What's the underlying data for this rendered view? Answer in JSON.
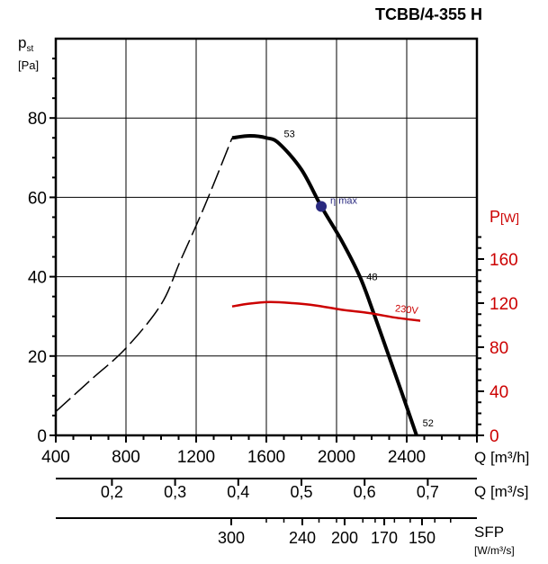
{
  "chart_data": {
    "type": "line",
    "title": "TCBB/4-355 H",
    "ylabel": {
      "symbol": "p",
      "subscript": "st",
      "unit": "[Pa]"
    },
    "ylim": [
      0,
      100
    ],
    "yticks": [
      0,
      20,
      40,
      60,
      80
    ],
    "xlabel": "Q [m³/h]",
    "xlim": [
      400,
      2800
    ],
    "xticks": [
      400,
      800,
      1200,
      1600,
      2000,
      2400
    ],
    "grid": true,
    "y2label": {
      "symbol": "P",
      "unit": "[W]"
    },
    "y2lim": [
      0,
      360
    ],
    "y2ticks": [
      0,
      40,
      80,
      120,
      160
    ],
    "axis_q_m3s": {
      "label": "Q [m³/s]",
      "ticks": [
        "0,2",
        "0,3",
        "0,4",
        "0,5",
        "0,6",
        "0,7"
      ],
      "values": [
        0.2,
        0.3,
        0.4,
        0.5,
        0.6,
        0.7
      ]
    },
    "axis_sfp": {
      "label": "SFP",
      "unit": "[W/m³/s]",
      "ticks": [
        "300",
        "240",
        "200",
        "170",
        "150"
      ],
      "q_m3h": [
        1400,
        1805,
        2046,
        2272,
        2487
      ]
    },
    "series": [
      {
        "kind": "pressure-unstable",
        "style": "dashed",
        "color": "#000000",
        "x": [
          400,
          600,
          800,
          1000,
          1110,
          1250,
          1405
        ],
        "y": [
          6,
          14,
          22,
          33,
          44,
          58,
          75
        ]
      },
      {
        "kind": "pressure",
        "style": "solid",
        "color": "#000000",
        "x": [
          1405,
          1508,
          1600,
          1672,
          1800,
          1913,
          2030,
          2133,
          2210,
          2287,
          2370,
          2456
        ],
        "y": [
          75,
          75.5,
          75,
          73.6,
          67,
          57.7,
          49,
          40,
          31,
          21.4,
          11,
          0
        ]
      },
      {
        "name": "230V",
        "kind": "power",
        "style": "solid",
        "color": "#cc0000",
        "x": [
          1405,
          1500,
          1620,
          1750,
          1877,
          2030,
          2185,
          2330,
          2477
        ],
        "y": [
          117,
          119.5,
          121,
          120,
          118,
          114,
          111,
          107,
          104
        ]
      }
    ],
    "annotations": [
      {
        "text": "53",
        "x": 1700,
        "y": 75
      },
      {
        "text": "η max",
        "x": 1913,
        "y": 57.7,
        "marker_color": "#2a2a80"
      },
      {
        "text": "48",
        "x": 2150,
        "y": 40
      },
      {
        "text": "230V",
        "x": 2350,
        "y": 108
      },
      {
        "text": "52",
        "x": 2470,
        "y": 2
      }
    ]
  }
}
